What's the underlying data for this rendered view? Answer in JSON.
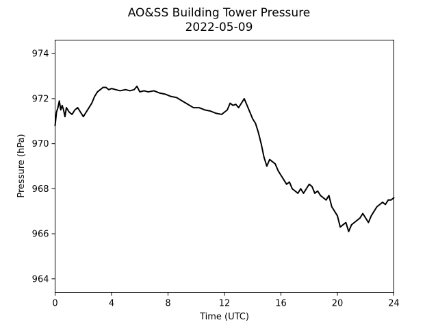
{
  "chart_data": {
    "type": "line",
    "title": "AO&SS Building Tower Pressure",
    "subtitle": "2022-05-09",
    "xlabel": "Time (UTC)",
    "ylabel": "Pressure (hPa)",
    "xlim": [
      0,
      24
    ],
    "ylim": [
      963.4,
      974.6
    ],
    "x_ticks": [
      0,
      4,
      8,
      12,
      16,
      20,
      24
    ],
    "y_ticks": [
      964,
      966,
      968,
      970,
      972,
      974
    ],
    "grid": false,
    "legend": "none",
    "line_color": "#000000",
    "series": [
      {
        "x": [
          0.0,
          0.1,
          0.2,
          0.3,
          0.4,
          0.5,
          0.6,
          0.7,
          0.8,
          0.9,
          1.0,
          1.2,
          1.4,
          1.6,
          1.8,
          2.0,
          2.2,
          2.4,
          2.6,
          2.8,
          3.0,
          3.2,
          3.4,
          3.6,
          3.8,
          4.0,
          4.3,
          4.6,
          5.0,
          5.3,
          5.6,
          5.8,
          6.0,
          6.3,
          6.6,
          7.0,
          7.4,
          7.8,
          8.2,
          8.6,
          9.0,
          9.4,
          9.8,
          10.2,
          10.6,
          11.0,
          11.4,
          11.8,
          12.0,
          12.2,
          12.4,
          12.6,
          12.8,
          13.0,
          13.2,
          13.4,
          13.6,
          13.8,
          14.0,
          14.2,
          14.4,
          14.6,
          14.8,
          15.0,
          15.2,
          15.4,
          15.6,
          15.8,
          16.0,
          16.2,
          16.4,
          16.6,
          16.8,
          17.0,
          17.2,
          17.4,
          17.6,
          17.8,
          18.0,
          18.2,
          18.4,
          18.6,
          18.8,
          19.0,
          19.2,
          19.4,
          19.6,
          19.8,
          20.0,
          20.2,
          20.4,
          20.6,
          20.8,
          21.0,
          21.2,
          21.4,
          21.6,
          21.8,
          22.0,
          22.2,
          22.4,
          22.6,
          22.8,
          23.0,
          23.2,
          23.4,
          23.6,
          23.8,
          24.0
        ],
        "values": [
          970.8,
          971.4,
          971.6,
          971.9,
          971.5,
          971.7,
          971.5,
          971.2,
          971.6,
          971.5,
          971.4,
          971.3,
          971.5,
          971.6,
          971.4,
          971.2,
          971.4,
          971.6,
          971.8,
          972.1,
          972.3,
          972.4,
          972.5,
          972.5,
          972.4,
          972.45,
          972.4,
          972.35,
          972.4,
          972.35,
          972.4,
          972.55,
          972.3,
          972.35,
          972.3,
          972.35,
          972.25,
          972.2,
          972.1,
          972.05,
          971.9,
          971.75,
          971.6,
          971.6,
          971.5,
          971.45,
          971.35,
          971.3,
          971.4,
          971.5,
          971.8,
          971.7,
          971.75,
          971.6,
          971.8,
          972.0,
          971.7,
          971.4,
          971.1,
          970.9,
          970.5,
          970.0,
          969.4,
          969.0,
          969.3,
          969.2,
          969.1,
          968.8,
          968.6,
          968.4,
          968.2,
          968.3,
          968.0,
          967.9,
          967.8,
          968.0,
          967.8,
          968.0,
          968.2,
          968.1,
          967.8,
          967.9,
          967.7,
          967.6,
          967.5,
          967.7,
          967.2,
          967.0,
          966.8,
          966.3,
          966.4,
          966.5,
          966.1,
          966.4,
          966.5,
          966.6,
          966.7,
          966.9,
          966.7,
          966.5,
          966.8,
          967.0,
          967.2,
          967.3,
          967.4,
          967.3,
          967.5,
          967.5,
          967.6
        ]
      }
    ]
  }
}
